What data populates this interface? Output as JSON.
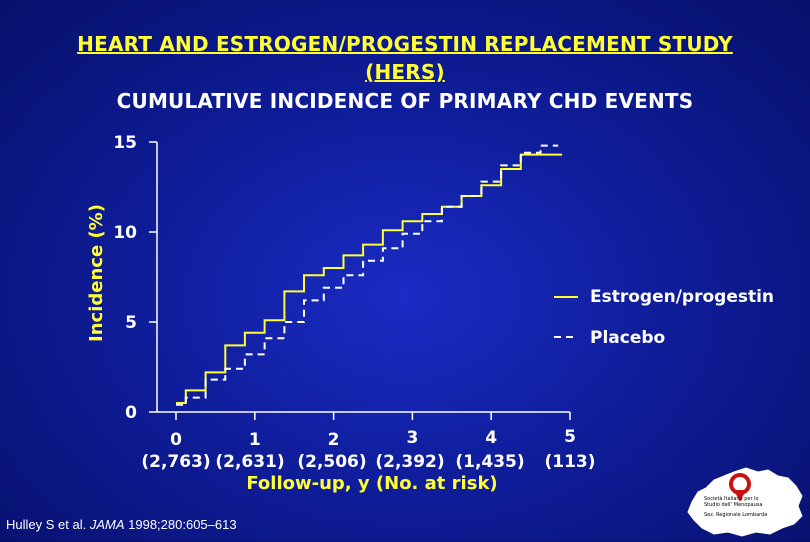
{
  "title_line1": "HEART AND ESTROGEN/PROGESTIN REPLACEMENT STUDY",
  "title_line2": "(HERS)",
  "subtitle": "CUMULATIVE INCIDENCE OF PRIMARY CHD EVENTS",
  "citation": {
    "authors": "Hulley S et al.",
    "journal": "JAMA",
    "ref": "1998;280:605–613"
  },
  "logo": {
    "line1": "Società Italiana per lo",
    "line2": "Studio dell’ Menopausa",
    "line3": "Sez. Regionale Lombarda"
  },
  "colors": {
    "estrogen_progestin": "#ffff33",
    "placebo": "#ffffff",
    "axis_labels": "#ffff33",
    "background": "#0f1d9a"
  },
  "chart_data": {
    "type": "line",
    "title": "CUMULATIVE INCIDENCE OF PRIMARY CHD EVENTS",
    "xlabel": "Follow-up, y (No. at risk)",
    "ylabel": "Incidence (%)",
    "xlim": [
      0,
      5
    ],
    "ylim": [
      0,
      15
    ],
    "x_ticks": [
      0,
      1,
      2,
      3,
      4,
      5
    ],
    "x_tick_labels": [
      "0",
      "1",
      "2",
      "3",
      "4",
      "5"
    ],
    "at_risk": [
      "(2,763)",
      "(2,631)",
      "(2,506)",
      "(2,392)",
      "(1,435)",
      "(113)"
    ],
    "y_ticks": [
      0,
      5,
      10,
      15
    ],
    "y_tick_labels": [
      "0",
      "5",
      "10",
      "15"
    ],
    "grid": false,
    "legend_position": "right",
    "series": [
      {
        "name": "Estrogen/progestin",
        "style": "solid",
        "x": [
          0,
          0.25,
          0.5,
          0.75,
          1.0,
          1.25,
          1.5,
          1.75,
          2.0,
          2.25,
          2.5,
          2.75,
          3.0,
          3.25,
          3.5,
          3.75,
          4.0,
          4.25,
          4.5,
          4.75,
          4.9
        ],
        "y": [
          0.5,
          1.2,
          2.2,
          3.7,
          4.4,
          5.1,
          6.7,
          7.6,
          8.0,
          8.7,
          9.3,
          10.1,
          10.6,
          11.0,
          11.4,
          12.0,
          12.6,
          13.5,
          14.3,
          14.3,
          14.3
        ]
      },
      {
        "name": "Placebo",
        "style": "dashed",
        "x": [
          0,
          0.25,
          0.5,
          0.75,
          1.0,
          1.25,
          1.5,
          1.75,
          2.0,
          2.25,
          2.5,
          2.75,
          3.0,
          3.25,
          3.5,
          3.75,
          4.0,
          4.25,
          4.5,
          4.75,
          4.85
        ],
        "y": [
          0.4,
          0.8,
          1.8,
          2.4,
          3.2,
          4.1,
          5.0,
          6.2,
          6.9,
          7.6,
          8.4,
          9.1,
          9.9,
          10.6,
          11.4,
          12.0,
          12.8,
          13.7,
          14.4,
          14.8,
          14.8
        ]
      }
    ]
  }
}
